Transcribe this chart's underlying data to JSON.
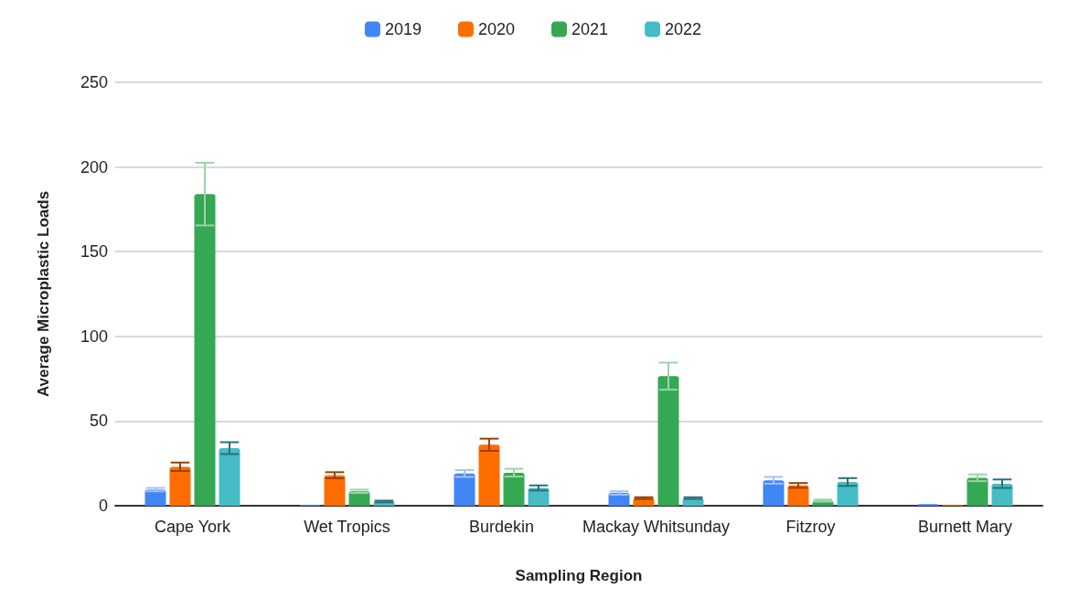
{
  "chart_data": {
    "type": "bar",
    "xlabel": "Sampling Region",
    "ylabel": "Average Microplastic Loads",
    "categories": [
      "Cape York",
      "Wet Tropics",
      "Burdekin",
      "Mackay Whitsunday",
      "Fitzroy",
      "Burnett Mary"
    ],
    "series": [
      {
        "name": "2019",
        "color": "#4285f4",
        "values": [
          9.5,
          0.5,
          19,
          7.5,
          15,
          1
        ],
        "errors": [
          1,
          null,
          2,
          1,
          2,
          null
        ]
      },
      {
        "name": "2020",
        "color": "#ff6d01",
        "values": [
          23,
          18,
          36,
          4.5,
          12,
          0.5
        ],
        "errors": [
          2.5,
          1.8,
          3.6,
          0.5,
          1.4,
          null
        ]
      },
      {
        "name": "2021",
        "color": "#34a853",
        "values": [
          184,
          8.5,
          19.5,
          76.5,
          3,
          16.5
        ],
        "errors": [
          18.5,
          1,
          2.3,
          8,
          0.6,
          2
        ]
      },
      {
        "name": "2022",
        "color": "#46bdc6",
        "values": [
          34,
          2.5,
          10.5,
          4.5,
          14,
          13
        ],
        "errors": [
          3.5,
          0.5,
          1.5,
          0.5,
          2.3,
          2.5
        ]
      }
    ],
    "ylim": [
      0,
      250
    ],
    "yticks": [
      0,
      50,
      100,
      150,
      200,
      250
    ],
    "grid": "y",
    "legend": "top"
  }
}
